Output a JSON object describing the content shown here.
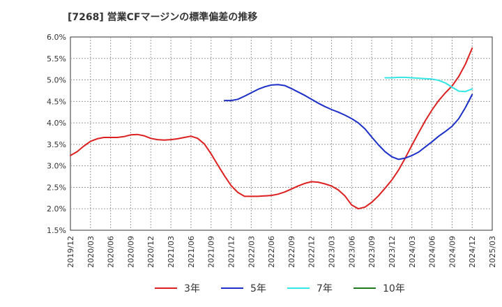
{
  "chart_data": {
    "type": "line",
    "title": "[7268]  営業CFマージンの標準偏差の推移",
    "xlabel": "",
    "ylabel": "",
    "ylim": [
      1.5,
      6.0
    ],
    "y_ticks": [
      "1.5%",
      "2.0%",
      "2.5%",
      "3.0%",
      "3.5%",
      "4.0%",
      "4.5%",
      "5.0%",
      "5.5%",
      "6.0%"
    ],
    "x_ticks": [
      "2019/12",
      "2020/03",
      "2020/06",
      "2020/09",
      "2020/12",
      "2021/03",
      "2021/06",
      "2021/09",
      "2021/12",
      "2022/03",
      "2022/06",
      "2022/09",
      "2022/12",
      "2023/03",
      "2023/06",
      "2023/09",
      "2023/12",
      "2024/03",
      "2024/06",
      "2024/09",
      "2024/12",
      "2025/03"
    ],
    "grid": true,
    "legend_position": "bottom",
    "series": [
      {
        "name": "3年",
        "color": "#dd1f1f",
        "points": [
          [
            "2019/12",
            3.24
          ],
          [
            "2020/01",
            3.33
          ],
          [
            "2020/02",
            3.46
          ],
          [
            "2020/03",
            3.57
          ],
          [
            "2020/04",
            3.63
          ],
          [
            "2020/05",
            3.66
          ],
          [
            "2020/06",
            3.66
          ],
          [
            "2020/07",
            3.66
          ],
          [
            "2020/08",
            3.68
          ],
          [
            "2020/09",
            3.72
          ],
          [
            "2020/10",
            3.73
          ],
          [
            "2020/11",
            3.7
          ],
          [
            "2020/12",
            3.64
          ],
          [
            "2021/01",
            3.61
          ],
          [
            "2021/02",
            3.6
          ],
          [
            "2021/03",
            3.61
          ],
          [
            "2021/04",
            3.63
          ],
          [
            "2021/05",
            3.66
          ],
          [
            "2021/06",
            3.69
          ],
          [
            "2021/07",
            3.64
          ],
          [
            "2021/08",
            3.51
          ],
          [
            "2021/09",
            3.28
          ],
          [
            "2021/10",
            3.02
          ],
          [
            "2021/11",
            2.77
          ],
          [
            "2021/12",
            2.54
          ],
          [
            "2022/01",
            2.38
          ],
          [
            "2022/02",
            2.29
          ],
          [
            "2022/03",
            2.29
          ],
          [
            "2022/04",
            2.29
          ],
          [
            "2022/05",
            2.3
          ],
          [
            "2022/06",
            2.31
          ],
          [
            "2022/07",
            2.34
          ],
          [
            "2022/08",
            2.39
          ],
          [
            "2022/09",
            2.46
          ],
          [
            "2022/10",
            2.53
          ],
          [
            "2022/11",
            2.59
          ],
          [
            "2022/12",
            2.63
          ],
          [
            "2023/01",
            2.62
          ],
          [
            "2023/02",
            2.58
          ],
          [
            "2023/03",
            2.53
          ],
          [
            "2023/04",
            2.44
          ],
          [
            "2023/05",
            2.3
          ],
          [
            "2023/06",
            2.09
          ],
          [
            "2023/07",
            2.0
          ],
          [
            "2023/08",
            2.04
          ],
          [
            "2023/09",
            2.15
          ],
          [
            "2023/10",
            2.3
          ],
          [
            "2023/11",
            2.48
          ],
          [
            "2023/12",
            2.67
          ],
          [
            "2024/01",
            2.9
          ],
          [
            "2024/02",
            3.18
          ],
          [
            "2024/03",
            3.48
          ],
          [
            "2024/04",
            3.77
          ],
          [
            "2024/05",
            4.05
          ],
          [
            "2024/06",
            4.3
          ],
          [
            "2024/07",
            4.52
          ],
          [
            "2024/08",
            4.7
          ],
          [
            "2024/09",
            4.86
          ],
          [
            "2024/10",
            5.08
          ],
          [
            "2024/11",
            5.37
          ],
          [
            "2024/12",
            5.74
          ]
        ]
      },
      {
        "name": "5年",
        "color": "#1c2fc8",
        "points": [
          [
            "2021/11",
            4.52
          ],
          [
            "2021/12",
            4.52
          ],
          [
            "2022/01",
            4.55
          ],
          [
            "2022/02",
            4.62
          ],
          [
            "2022/03",
            4.7
          ],
          [
            "2022/04",
            4.78
          ],
          [
            "2022/05",
            4.84
          ],
          [
            "2022/06",
            4.88
          ],
          [
            "2022/07",
            4.89
          ],
          [
            "2022/08",
            4.87
          ],
          [
            "2022/09",
            4.8
          ],
          [
            "2022/10",
            4.72
          ],
          [
            "2022/11",
            4.64
          ],
          [
            "2022/12",
            4.55
          ],
          [
            "2023/01",
            4.46
          ],
          [
            "2023/02",
            4.38
          ],
          [
            "2023/03",
            4.31
          ],
          [
            "2023/04",
            4.25
          ],
          [
            "2023/05",
            4.18
          ],
          [
            "2023/06",
            4.1
          ],
          [
            "2023/07",
            4.0
          ],
          [
            "2023/08",
            3.86
          ],
          [
            "2023/09",
            3.67
          ],
          [
            "2023/10",
            3.49
          ],
          [
            "2023/11",
            3.33
          ],
          [
            "2023/12",
            3.21
          ],
          [
            "2024/01",
            3.15
          ],
          [
            "2024/02",
            3.18
          ],
          [
            "2024/03",
            3.24
          ],
          [
            "2024/04",
            3.32
          ],
          [
            "2024/05",
            3.44
          ],
          [
            "2024/06",
            3.56
          ],
          [
            "2024/07",
            3.69
          ],
          [
            "2024/08",
            3.8
          ],
          [
            "2024/09",
            3.92
          ],
          [
            "2024/10",
            4.1
          ],
          [
            "2024/11",
            4.36
          ],
          [
            "2024/12",
            4.66
          ]
        ]
      },
      {
        "name": "7年",
        "color": "#33e6e6",
        "points": [
          [
            "2023/11",
            5.05
          ],
          [
            "2023/12",
            5.05
          ],
          [
            "2024/01",
            5.06
          ],
          [
            "2024/02",
            5.06
          ],
          [
            "2024/03",
            5.05
          ],
          [
            "2024/04",
            5.04
          ],
          [
            "2024/05",
            5.03
          ],
          [
            "2024/06",
            5.02
          ],
          [
            "2024/07",
            4.99
          ],
          [
            "2024/08",
            4.93
          ],
          [
            "2024/09",
            4.83
          ],
          [
            "2024/10",
            4.74
          ],
          [
            "2024/11",
            4.73
          ],
          [
            "2024/12",
            4.79
          ]
        ]
      },
      {
        "name": "10年",
        "color": "#1f7a1f",
        "points": []
      }
    ]
  }
}
